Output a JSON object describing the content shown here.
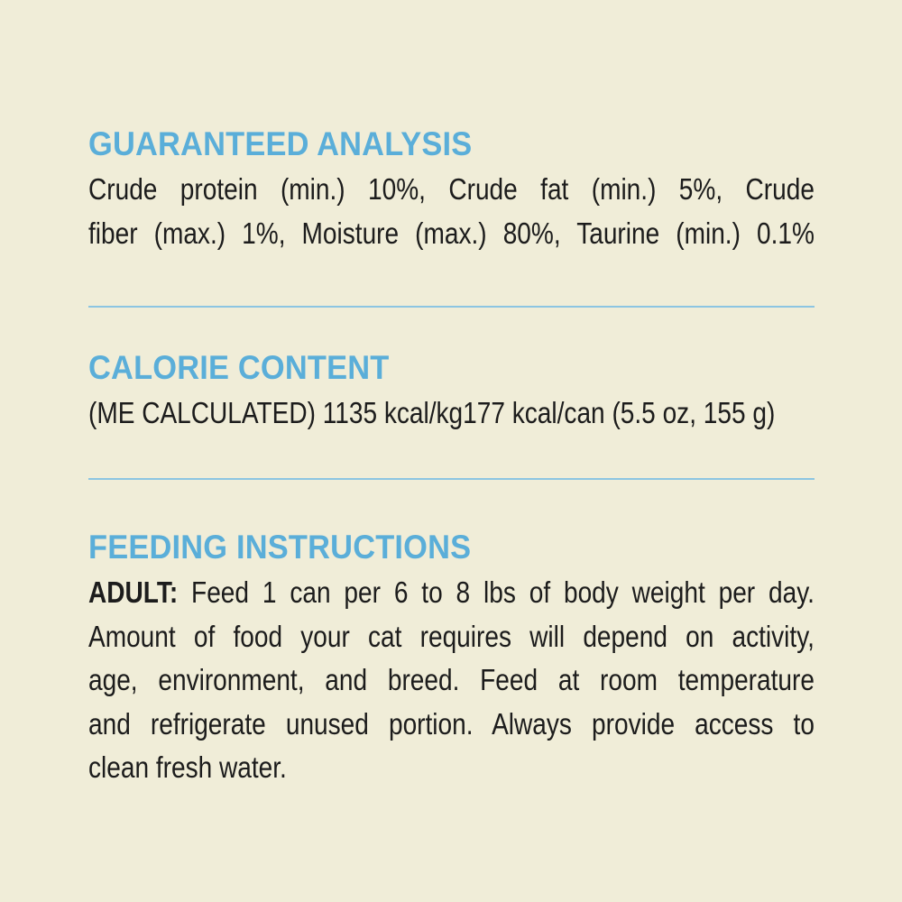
{
  "guaranteed_analysis": {
    "heading": "GUARANTEED ANALYSIS",
    "lines": [
      "Crude protein (min.) 10%, Crude fat (min.) 5%, Crude",
      "fiber (max.) 1%, Moisture (max.) 80%, Taurine (min.) 0.1%"
    ]
  },
  "calorie_content": {
    "heading": "CALORIE CONTENT",
    "text": "(ME CALCULATED) 1135 kcal/kg177 kcal/can (5.5 oz, 155 g)"
  },
  "feeding_instructions": {
    "heading": "FEEDING INSTRUCTIONS",
    "label": "ADULT:",
    "first_line": " Feed 1 can per 6 to 8 lbs of body weight per day.",
    "lines": [
      "Amount of food your cat requires will depend on activity,",
      "age, environment, and breed. Feed at room temperature",
      "and refrigerate unused portion. Always provide access to",
      "clean fresh water."
    ]
  },
  "colors": {
    "background": "#f0edd8",
    "heading": "#5aaed9",
    "rule": "#8cc5e2",
    "text": "#1c1c1c"
  }
}
